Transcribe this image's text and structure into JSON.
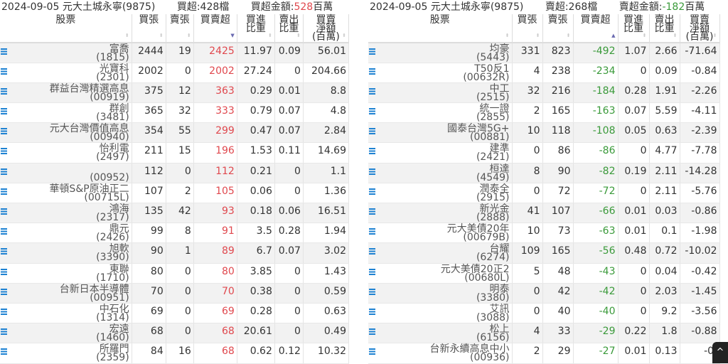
{
  "columns": [
    "股票",
    "買張",
    "賣張",
    "買賣超",
    "買進\n比重",
    "賣出\n比重",
    "買賣\n淨額\n(百萬)"
  ],
  "colors": {
    "buy": "#e0484e",
    "sell": "#3a9a3a",
    "list_icon": "#1e82d2"
  },
  "left": {
    "date": "2024-09-05",
    "broker": "元大土城永寧(9875)",
    "count_label": "買超:428檔",
    "amount_label": "買超金額:",
    "amount": "528",
    "unit": "百萬",
    "sort": "desc",
    "rows": [
      {
        "name": "富喬",
        "code": "(1815)",
        "buy": "2444",
        "sell": "19",
        "net": "2425",
        "buy_pct": "11.97",
        "sell_pct": "0.09",
        "amt": "56.01"
      },
      {
        "name": "光寶科",
        "code": "(2301)",
        "buy": "2002",
        "sell": "0",
        "net": "2002",
        "buy_pct": "27.24",
        "sell_pct": "0",
        "amt": "204.66"
      },
      {
        "name": "群益台灣精選高息",
        "code": "(00919)",
        "buy": "375",
        "sell": "12",
        "net": "363",
        "buy_pct": "0.29",
        "sell_pct": "0.01",
        "amt": "8.8"
      },
      {
        "name": "群創",
        "code": "(3481)",
        "buy": "365",
        "sell": "32",
        "net": "333",
        "buy_pct": "0.79",
        "sell_pct": "0.07",
        "amt": "4.8"
      },
      {
        "name": "元大台灣價值高息",
        "code": "(00940)",
        "buy": "354",
        "sell": "55",
        "net": "299",
        "buy_pct": "0.47",
        "sell_pct": "0.07",
        "amt": "2.84"
      },
      {
        "name": "怡利電",
        "code": "(2497)",
        "buy": "211",
        "sell": "15",
        "net": "196",
        "buy_pct": "1.53",
        "sell_pct": "0.11",
        "amt": "14.69"
      },
      {
        "name": "",
        "code": "(00952)",
        "buy": "112",
        "sell": "0",
        "net": "112",
        "buy_pct": "0.21",
        "sell_pct": "0",
        "amt": "1.1"
      },
      {
        "name": "華頓S&P原油正二",
        "code": "(00715L)",
        "buy": "107",
        "sell": "2",
        "net": "105",
        "buy_pct": "0.06",
        "sell_pct": "0",
        "amt": "1.36"
      },
      {
        "name": "鴻海",
        "code": "(2317)",
        "buy": "135",
        "sell": "42",
        "net": "93",
        "buy_pct": "0.18",
        "sell_pct": "0.06",
        "amt": "16.51"
      },
      {
        "name": "鼎元",
        "code": "(2426)",
        "buy": "99",
        "sell": "8",
        "net": "91",
        "buy_pct": "3.5",
        "sell_pct": "0.28",
        "amt": "1.94"
      },
      {
        "name": "旭軟",
        "code": "(3390)",
        "buy": "90",
        "sell": "1",
        "net": "89",
        "buy_pct": "6.7",
        "sell_pct": "0.07",
        "amt": "3.02"
      },
      {
        "name": "東聯",
        "code": "(1710)",
        "buy": "80",
        "sell": "0",
        "net": "80",
        "buy_pct": "3.85",
        "sell_pct": "0",
        "amt": "1.43"
      },
      {
        "name": "台新日本半導體",
        "code": "(00951)",
        "buy": "70",
        "sell": "0",
        "net": "70",
        "buy_pct": "0.38",
        "sell_pct": "0",
        "amt": "0.59"
      },
      {
        "name": "中石化",
        "code": "(1314)",
        "buy": "69",
        "sell": "0",
        "net": "69",
        "buy_pct": "0.28",
        "sell_pct": "0",
        "amt": "0.63"
      },
      {
        "name": "宏遠",
        "code": "(1460)",
        "buy": "68",
        "sell": "0",
        "net": "68",
        "buy_pct": "20.61",
        "sell_pct": "0",
        "amt": "0.49"
      },
      {
        "name": "所羅門",
        "code": "(2359)",
        "buy": "84",
        "sell": "16",
        "net": "68",
        "buy_pct": "0.62",
        "sell_pct": "0.12",
        "amt": "10.32"
      }
    ]
  },
  "right": {
    "date": "2024-09-05",
    "broker": "元大土城永寧(9875)",
    "count_label": "賣超:268檔",
    "amount_label": "賣超金額:",
    "amount": "-182",
    "unit": "百萬",
    "sort": "asc",
    "rows": [
      {
        "name": "均豪",
        "code": "(5443)",
        "buy": "331",
        "sell": "823",
        "net": "-492",
        "buy_pct": "1.07",
        "sell_pct": "2.66",
        "amt": "-71.64"
      },
      {
        "name": "T50反1",
        "code": "(00632R)",
        "buy": "4",
        "sell": "238",
        "net": "-234",
        "buy_pct": "0",
        "sell_pct": "0.09",
        "amt": "-0.84"
      },
      {
        "name": "中工",
        "code": "(2515)",
        "buy": "32",
        "sell": "216",
        "net": "-184",
        "buy_pct": "0.28",
        "sell_pct": "1.91",
        "amt": "-2.26"
      },
      {
        "name": "統一證",
        "code": "(2855)",
        "buy": "2",
        "sell": "165",
        "net": "-163",
        "buy_pct": "0.07",
        "sell_pct": "5.59",
        "amt": "-4.11"
      },
      {
        "name": "國泰台灣5G+",
        "code": "(00881)",
        "buy": "10",
        "sell": "118",
        "net": "-108",
        "buy_pct": "0.05",
        "sell_pct": "0.63",
        "amt": "-2.39"
      },
      {
        "name": "建準",
        "code": "(2421)",
        "buy": "0",
        "sell": "86",
        "net": "-86",
        "buy_pct": "0",
        "sell_pct": "4.77",
        "amt": "-7.78"
      },
      {
        "name": "桓達",
        "code": "(4549)",
        "buy": "8",
        "sell": "90",
        "net": "-82",
        "buy_pct": "0.19",
        "sell_pct": "2.11",
        "amt": "-14.28"
      },
      {
        "name": "潤泰全",
        "code": "(2915)",
        "buy": "0",
        "sell": "72",
        "net": "-72",
        "buy_pct": "0",
        "sell_pct": "2.11",
        "amt": "-5.76"
      },
      {
        "name": "新光金",
        "code": "(2888)",
        "buy": "41",
        "sell": "107",
        "net": "-66",
        "buy_pct": "0.01",
        "sell_pct": "0.03",
        "amt": "-0.86"
      },
      {
        "name": "元大美債20年",
        "code": "(00679B)",
        "buy": "10",
        "sell": "73",
        "net": "-63",
        "buy_pct": "0.01",
        "sell_pct": "0.1",
        "amt": "-1.98"
      },
      {
        "name": "台耀",
        "code": "(6274)",
        "buy": "109",
        "sell": "165",
        "net": "-56",
        "buy_pct": "0.48",
        "sell_pct": "0.72",
        "amt": "-10.02"
      },
      {
        "name": "元大美債20正2",
        "code": "(00680L)",
        "buy": "5",
        "sell": "48",
        "net": "-43",
        "buy_pct": "0",
        "sell_pct": "0.04",
        "amt": "-0.42"
      },
      {
        "name": "明泰",
        "code": "(3380)",
        "buy": "0",
        "sell": "42",
        "net": "-42",
        "buy_pct": "0",
        "sell_pct": "2.03",
        "amt": "-1.45"
      },
      {
        "name": "艾訊",
        "code": "(3088)",
        "buy": "0",
        "sell": "40",
        "net": "-40",
        "buy_pct": "0",
        "sell_pct": "9.2",
        "amt": "-3.56"
      },
      {
        "name": "松上",
        "code": "(6156)",
        "buy": "4",
        "sell": "33",
        "net": "-29",
        "buy_pct": "0.22",
        "sell_pct": "1.8",
        "amt": "-0.88"
      },
      {
        "name": "台新永續高息中小",
        "code": "(00936)",
        "buy": "2",
        "sell": "29",
        "net": "-27",
        "buy_pct": "0.01",
        "sell_pct": "0.13",
        "amt": "-0."
      }
    ]
  },
  "scroll_top": "^"
}
